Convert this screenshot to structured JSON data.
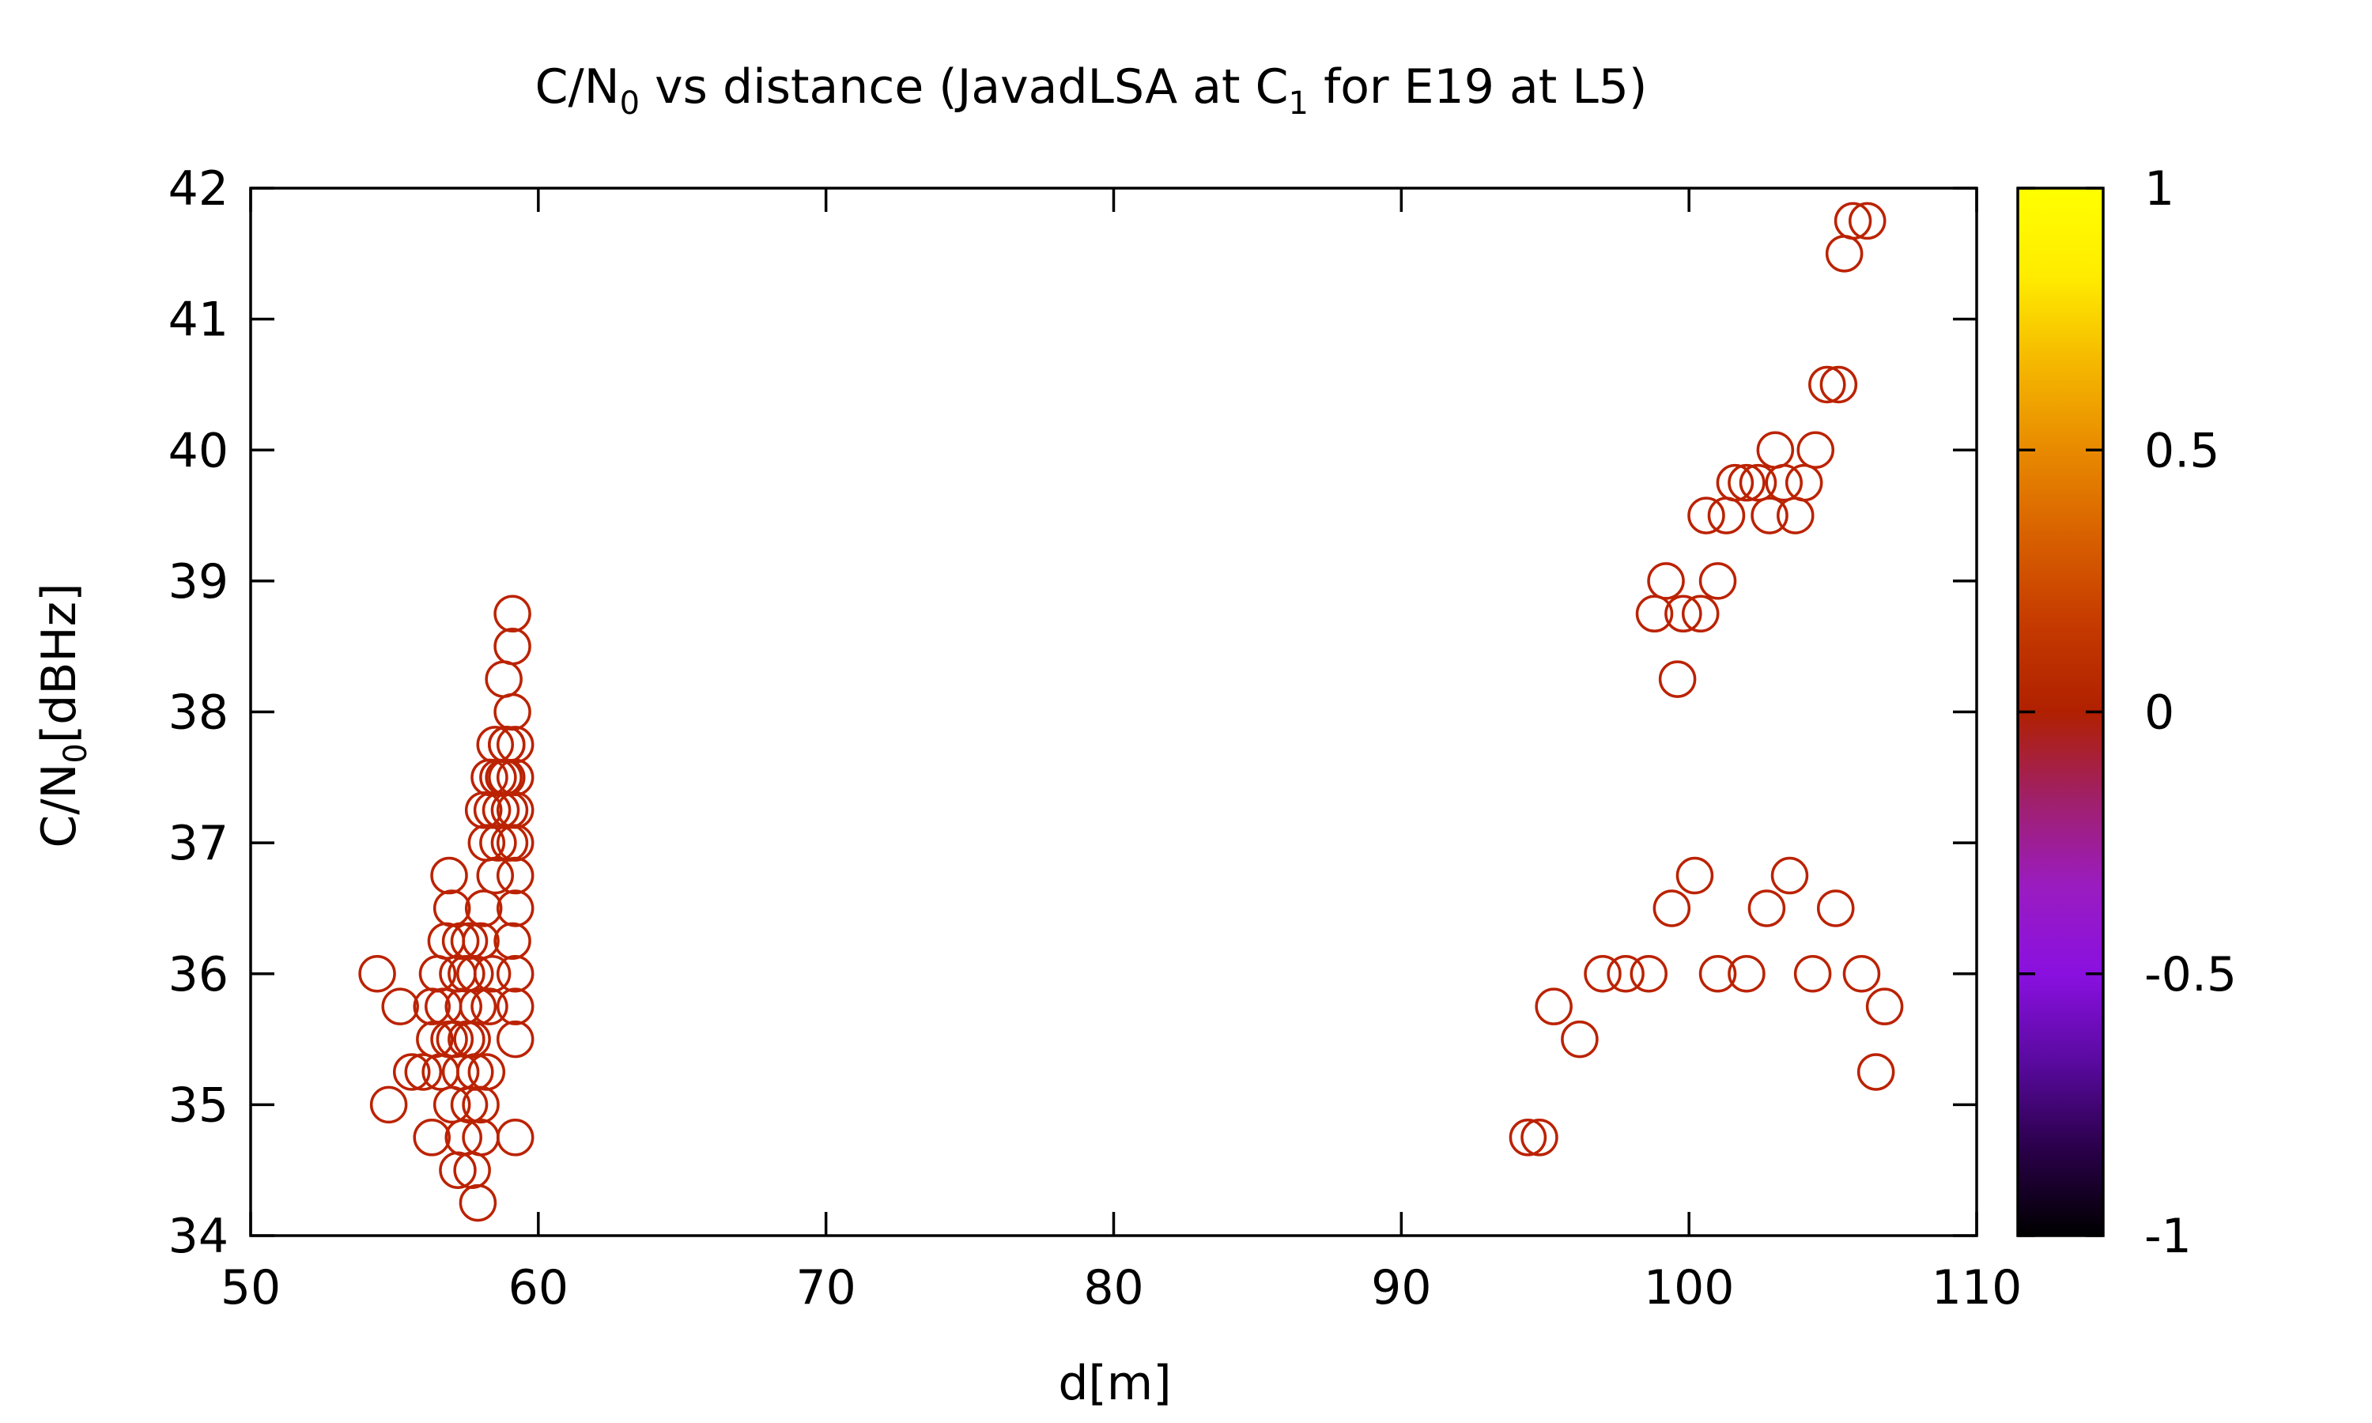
{
  "chart_data": {
    "type": "scatter",
    "title": {
      "parts": [
        {
          "text": "C/N",
          "sub": false
        },
        {
          "text": "0",
          "sub": true
        },
        {
          "text": " vs distance (JavadLSA at C",
          "sub": false
        },
        {
          "text": "1",
          "sub": true
        },
        {
          "text": " for E19 at L5)",
          "sub": false
        }
      ]
    },
    "xlabel": "d[m]",
    "ylabel": {
      "parts": [
        {
          "text": "C/N",
          "sub": false
        },
        {
          "text": "0",
          "sub": true
        },
        {
          "text": "[dBHz]",
          "sub": false
        }
      ]
    },
    "xlim": [
      50,
      110
    ],
    "ylim": [
      34,
      42
    ],
    "xticks": [
      50,
      60,
      70,
      80,
      90,
      100,
      110
    ],
    "yticks": [
      34,
      35,
      36,
      37,
      38,
      39,
      40,
      41,
      42
    ],
    "grid": false,
    "marker": "open-circle",
    "marker_color": "#bb2200",
    "colorbar": {
      "range": [
        -1,
        1
      ],
      "ticks": [
        -1,
        -0.5,
        0,
        0.5,
        1
      ],
      "tick_labels": [
        "-1",
        "-0.5",
        "0",
        "0.5",
        "1"
      ],
      "colormap": [
        "#000000",
        "#2a004a",
        "#5a0aa0",
        "#8a10e0",
        "#9a1cc0",
        "#a0206a",
        "#b02000",
        "#c53a00",
        "#d86000",
        "#e88a00",
        "#f5b800",
        "#ffec00",
        "#ffff00"
      ]
    },
    "series": [
      {
        "points": [
          [
            54.4,
            36
          ],
          [
            54.8,
            35
          ],
          [
            55.2,
            35.75
          ],
          [
            55.6,
            35.25
          ],
          [
            56.0,
            35.25
          ],
          [
            56.3,
            35.75
          ],
          [
            56.3,
            34.75
          ],
          [
            56.4,
            35.5
          ],
          [
            56.5,
            36
          ],
          [
            56.6,
            35.25
          ],
          [
            56.7,
            35.75
          ],
          [
            56.8,
            36.25
          ],
          [
            56.9,
            35.5
          ],
          [
            56.9,
            36.75
          ],
          [
            57.0,
            35
          ],
          [
            57.0,
            36.5
          ],
          [
            57.1,
            35.5
          ],
          [
            57.2,
            36
          ],
          [
            57.2,
            34.5
          ],
          [
            57.3,
            35.25
          ],
          [
            57.3,
            36.25
          ],
          [
            57.4,
            35.75
          ],
          [
            57.4,
            34.75
          ],
          [
            57.5,
            35.5
          ],
          [
            57.5,
            36
          ],
          [
            57.6,
            35
          ],
          [
            57.6,
            36.25
          ],
          [
            57.7,
            35.5
          ],
          [
            57.7,
            34.5
          ],
          [
            57.8,
            35.25
          ],
          [
            57.8,
            36
          ],
          [
            57.9,
            35.75
          ],
          [
            57.9,
            34.25
          ],
          [
            58.0,
            34.75
          ],
          [
            58.0,
            35
          ],
          [
            58.0,
            36.25
          ],
          [
            58.1,
            36.5
          ],
          [
            58.1,
            37.25
          ],
          [
            58.2,
            35.25
          ],
          [
            58.2,
            37
          ],
          [
            58.3,
            35.75
          ],
          [
            58.3,
            37.5
          ],
          [
            58.4,
            36
          ],
          [
            58.4,
            37.25
          ],
          [
            58.5,
            37.75
          ],
          [
            58.5,
            36.75
          ],
          [
            58.6,
            37.5
          ],
          [
            58.6,
            37
          ],
          [
            58.7,
            37.25
          ],
          [
            58.8,
            37.5
          ],
          [
            58.8,
            38.25
          ],
          [
            58.9,
            37.75
          ],
          [
            58.9,
            37.5
          ],
          [
            59.0,
            37
          ],
          [
            59.0,
            37.25
          ],
          [
            59.1,
            38.5
          ],
          [
            59.1,
            38
          ],
          [
            59.2,
            37.5
          ],
          [
            59.2,
            36.5
          ],
          [
            59.1,
            36.25
          ],
          [
            59.2,
            36
          ],
          [
            59.2,
            35.75
          ],
          [
            59.2,
            35.5
          ],
          [
            59.2,
            34.75
          ],
          [
            59.1,
            38.75
          ],
          [
            59.2,
            37
          ],
          [
            59.2,
            36.75
          ],
          [
            58.9,
            37.75
          ],
          [
            59.2,
            37.75
          ],
          [
            59.2,
            37.25
          ],
          [
            94.4,
            34.75
          ],
          [
            94.8,
            34.75
          ],
          [
            95.3,
            35.75
          ],
          [
            96.2,
            35.5
          ],
          [
            97.0,
            36
          ],
          [
            97.8,
            36
          ],
          [
            98.6,
            36
          ],
          [
            98.8,
            38.75
          ],
          [
            99.2,
            39
          ],
          [
            99.4,
            36.5
          ],
          [
            99.6,
            38.25
          ],
          [
            99.8,
            38.75
          ],
          [
            100.2,
            36.75
          ],
          [
            100.4,
            38.75
          ],
          [
            100.6,
            39.5
          ],
          [
            101.0,
            39
          ],
          [
            101.0,
            36
          ],
          [
            101.3,
            39.5
          ],
          [
            101.6,
            39.75
          ],
          [
            102.0,
            36
          ],
          [
            102.0,
            39.75
          ],
          [
            102.4,
            39.75
          ],
          [
            102.7,
            36.5
          ],
          [
            102.8,
            39.5
          ],
          [
            103.0,
            40
          ],
          [
            103.3,
            39.75
          ],
          [
            103.5,
            36.75
          ],
          [
            103.7,
            39.5
          ],
          [
            104.0,
            39.75
          ],
          [
            104.3,
            36
          ],
          [
            104.4,
            40
          ],
          [
            104.8,
            40.5
          ],
          [
            105.2,
            40.5
          ],
          [
            105.1,
            36.5
          ],
          [
            105.4,
            41.5
          ],
          [
            105.7,
            41.75
          ],
          [
            106.0,
            36
          ],
          [
            106.2,
            41.75
          ],
          [
            106.5,
            35.25
          ],
          [
            106.8,
            35.75
          ]
        ]
      }
    ]
  }
}
